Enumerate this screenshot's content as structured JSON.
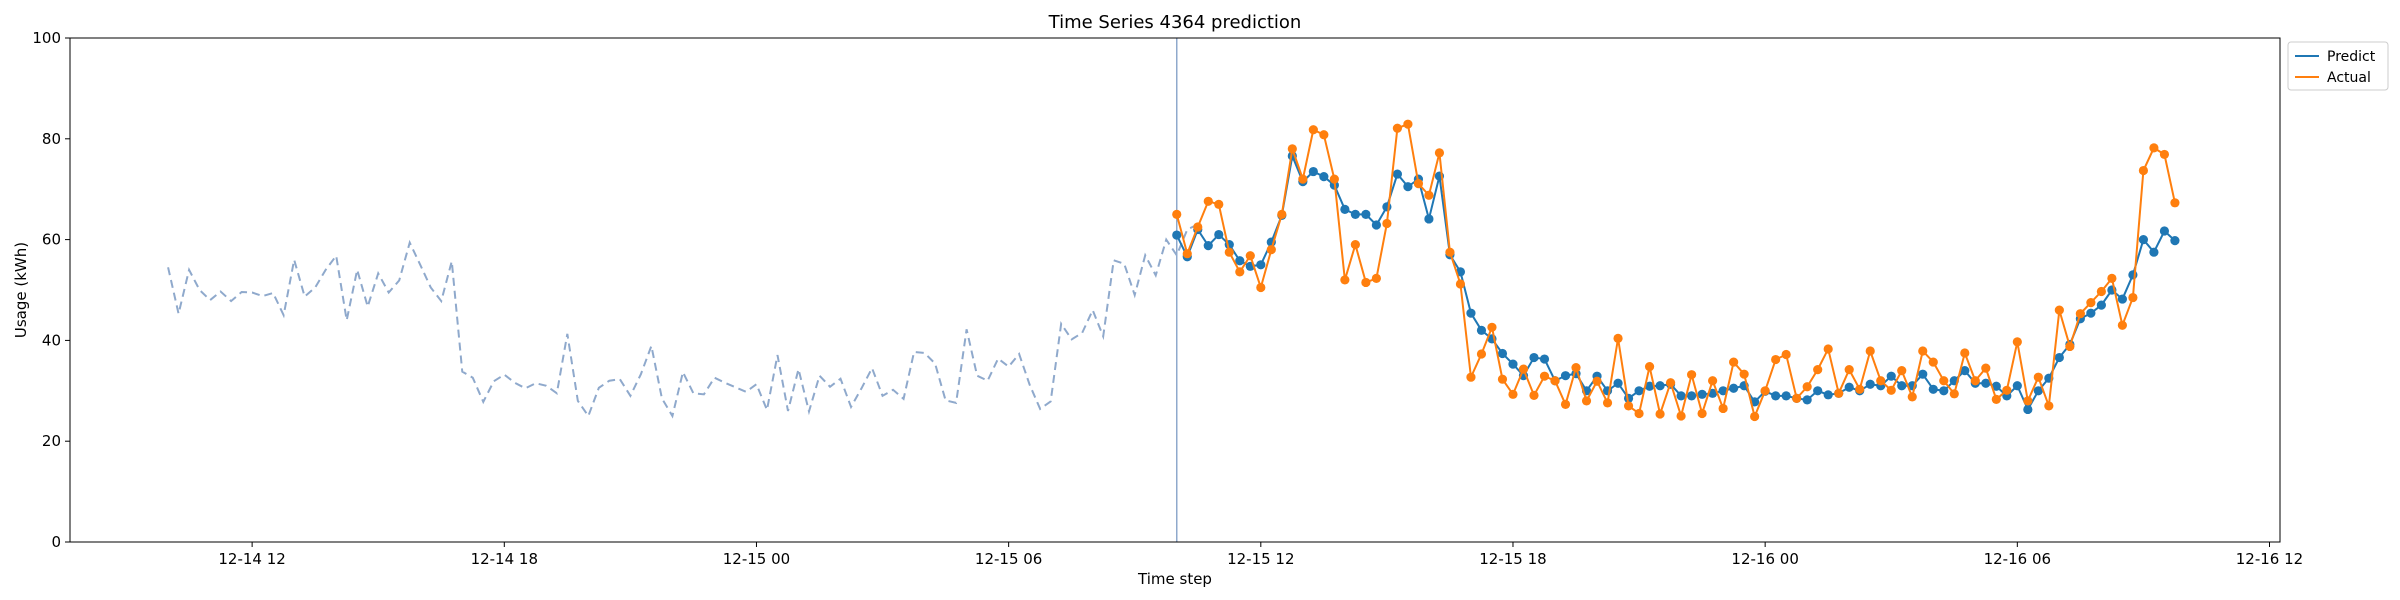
{
  "chart_data": {
    "type": "line",
    "title": "Time Series 4364 prediction",
    "xlabel": "Time step",
    "ylabel": "Usage (kWh)",
    "ylim": [
      0,
      100
    ],
    "xlim": [
      "2024-12-14 07:40",
      "2024-12-16 12:15"
    ],
    "y_ticks": [
      0,
      20,
      40,
      60,
      80,
      100
    ],
    "x_ticks": [
      {
        "label": "12-14 12",
        "t": "2024-12-14 12:00"
      },
      {
        "label": "12-14 18",
        "t": "2024-12-14 18:00"
      },
      {
        "label": "12-15 00",
        "t": "2024-12-15 00:00"
      },
      {
        "label": "12-15 06",
        "t": "2024-12-15 06:00"
      },
      {
        "label": "12-15 12",
        "t": "2024-12-15 12:00"
      },
      {
        "label": "12-15 18",
        "t": "2024-12-15 18:00"
      },
      {
        "label": "12-16 00",
        "t": "2024-12-16 00:00"
      },
      {
        "label": "12-16 06",
        "t": "2024-12-16 06:00"
      },
      {
        "label": "12-16 12",
        "t": "2024-12-16 12:00"
      }
    ],
    "forecast_start": "2024-12-15 10:00",
    "legend": {
      "position": "upper-right-outside",
      "entries": [
        "Predict",
        "Actual"
      ]
    },
    "colors": {
      "predict": "#1f77b4",
      "actual": "#ff7f0e",
      "history": "#8fa9cc",
      "marker_line": "#8fa9cc"
    },
    "history": {
      "start": "2024-12-14 10:00",
      "step_minutes": 15,
      "values": [
        54.5,
        45.3,
        54.0,
        50.0,
        48.0,
        49.7,
        47.8,
        49.6,
        49.5,
        48.8,
        49.4,
        45.0,
        56.0,
        48.7,
        50.5,
        54.0,
        56.8,
        44.0,
        54.0,
        46.7,
        53.3,
        49.5,
        51.9,
        59.4,
        55.0,
        50.5,
        47.8,
        55.7,
        33.8,
        32.6,
        27.8,
        31.9,
        33.2,
        31.6,
        30.5,
        31.5,
        31.0,
        29.5,
        41.3,
        28.0,
        25.0,
        30.6,
        32.0,
        32.3,
        29.0,
        33.3,
        38.9,
        28.5,
        25.0,
        33.7,
        29.5,
        29.3,
        32.6,
        31.6,
        30.7,
        29.8,
        31.3,
        26.2,
        37.1,
        26.0,
        34.3,
        25.9,
        33.0,
        30.8,
        32.4,
        26.8,
        30.5,
        34.5,
        29.0,
        30.2,
        28.4,
        37.7,
        37.5,
        35.4,
        28.1,
        27.6,
        42.2,
        33.0,
        32.0,
        36.4,
        34.8,
        37.3,
        31.2,
        26.4,
        27.9,
        43.3,
        40.2,
        41.5,
        46.0,
        40.8,
        55.9,
        55.2,
        49.0,
        56.9,
        52.9,
        60.0,
        56.9,
        62.0,
        63.0
      ]
    },
    "series": [
      {
        "name": "Predict",
        "start": "2024-12-15 10:00",
        "step_minutes": 15,
        "values": [
          60.9,
          56.6,
          62.0,
          58.8,
          61.0,
          59.0,
          55.8,
          54.7,
          55.0,
          59.5,
          64.8,
          76.6,
          71.5,
          73.5,
          72.5,
          70.8,
          66.0,
          65.0,
          65.0,
          62.9,
          66.5,
          73.0,
          70.5,
          72.0,
          64.1,
          72.6,
          57.0,
          53.6,
          45.4,
          42.0,
          40.3,
          37.4,
          35.3,
          33.0,
          36.6,
          36.3,
          32.0,
          33.0,
          33.4,
          30.0,
          32.9,
          30.0,
          31.5,
          28.5,
          30.0,
          30.9,
          31.0,
          31.3,
          29.0,
          29.0,
          29.3,
          29.5,
          30.0,
          30.5,
          31.0,
          27.8,
          29.9,
          29.0,
          29.0,
          28.5,
          28.2,
          30.0,
          29.2,
          29.5,
          30.7,
          30.0,
          31.3,
          31.0,
          32.9,
          31.0,
          31.0,
          33.3,
          30.3,
          30.0,
          32.0,
          34.0,
          31.5,
          31.5,
          30.9,
          29.0,
          31.0,
          26.3,
          30.0,
          32.5,
          36.6,
          39.2,
          44.3,
          45.4,
          47.0,
          50.0,
          48.2,
          53.0,
          60.0,
          57.5,
          61.7,
          59.8
        ]
      },
      {
        "name": "Actual",
        "start": "2024-12-15 10:00",
        "step_minutes": 15,
        "values": [
          65.0,
          57.2,
          62.5,
          67.6,
          67.0,
          57.5,
          53.6,
          56.8,
          50.5,
          58.0,
          65.0,
          78.0,
          72.0,
          81.8,
          80.8,
          72.0,
          52.0,
          59.0,
          51.5,
          52.3,
          63.2,
          82.1,
          82.9,
          71.1,
          68.8,
          77.2,
          57.5,
          51.2,
          32.7,
          37.3,
          42.6,
          32.3,
          29.3,
          34.3,
          29.1,
          32.9,
          32.0,
          27.3,
          34.6,
          28.0,
          31.9,
          27.6,
          40.4,
          27.0,
          25.5,
          34.8,
          25.4,
          31.6,
          25.0,
          33.2,
          25.5,
          32.0,
          26.5,
          35.7,
          33.3,
          24.9,
          30.0,
          36.2,
          37.2,
          28.5,
          30.8,
          34.2,
          38.3,
          29.5,
          34.2,
          30.3,
          37.9,
          32.0,
          30.1,
          34.0,
          28.8,
          37.9,
          35.7,
          32.0,
          29.4,
          37.5,
          32.0,
          34.5,
          28.3,
          30.1,
          39.7,
          28.0,
          32.7,
          27.0,
          46.0,
          38.8,
          45.3,
          47.5,
          49.7,
          52.3,
          43.0,
          48.5,
          73.7,
          78.2,
          76.9,
          67.3
        ]
      }
    ]
  }
}
